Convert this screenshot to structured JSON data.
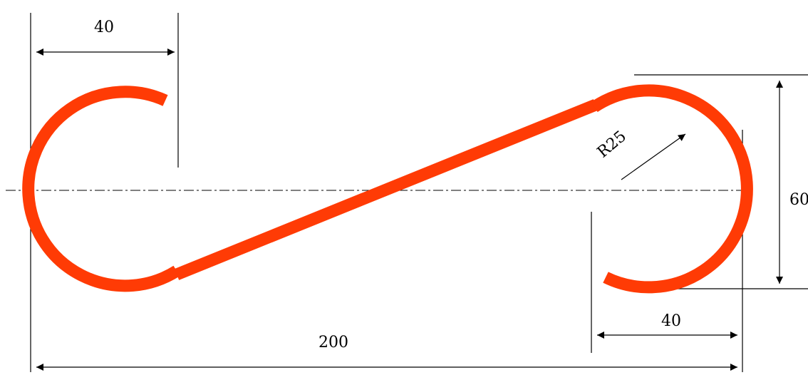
{
  "colors": {
    "hook_stroke": "#ff3b05",
    "dimension_lines": "#000000"
  },
  "dimensions": {
    "top_left_width": "40",
    "bottom_right_width": "40",
    "overall_length": "200",
    "height": "60",
    "radius": "R25"
  }
}
